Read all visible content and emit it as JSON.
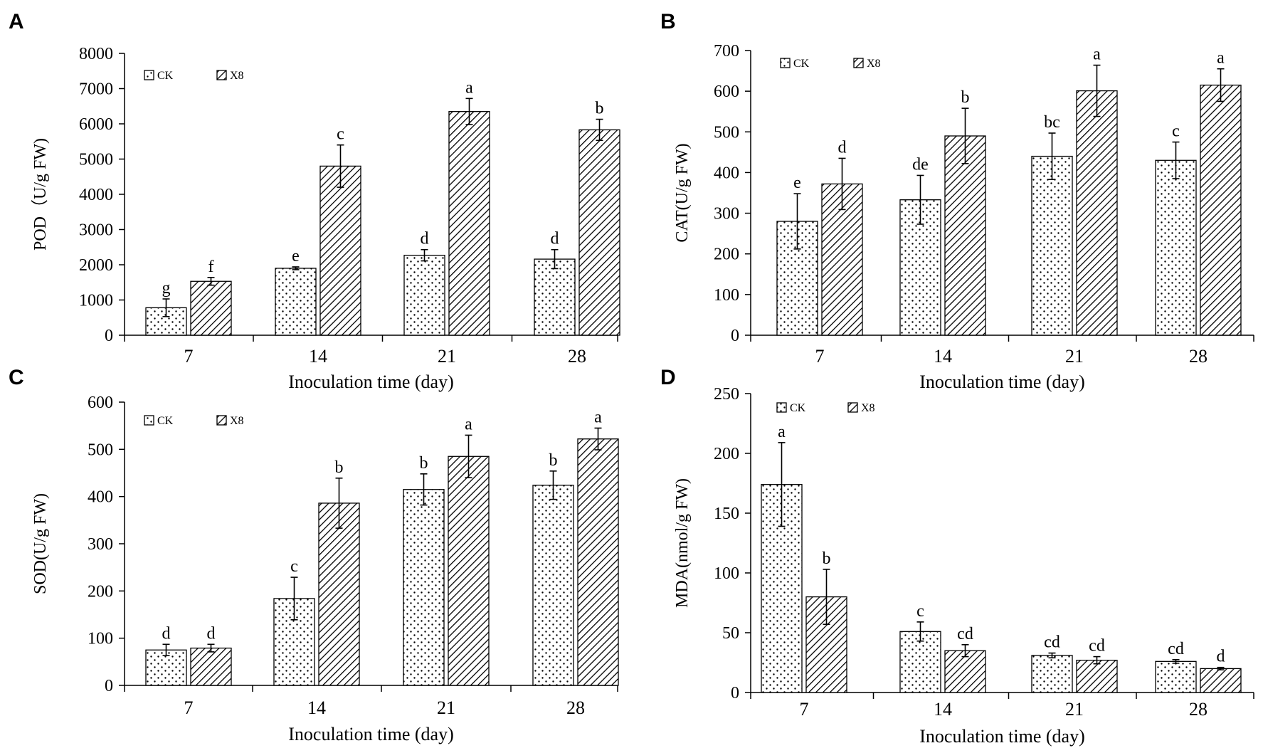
{
  "chart_data": [
    {
      "panel": "A",
      "type": "bar",
      "categories": [
        "7",
        "14",
        "21",
        "28"
      ],
      "series": [
        {
          "name": "CK",
          "values": [
            780,
            1900,
            2270,
            2160
          ],
          "errors": [
            250,
            40,
            160,
            270
          ],
          "labels": [
            "g",
            "e",
            "d",
            "d"
          ]
        },
        {
          "name": "X8",
          "values": [
            1530,
            4800,
            6350,
            5830
          ],
          "errors": [
            110,
            600,
            370,
            300
          ],
          "labels": [
            "f",
            "c",
            "a",
            "b"
          ]
        }
      ],
      "xlabel": "Inoculation time (day)",
      "ylabel": "POD（U/g FW)",
      "ylim": [
        0,
        8000
      ],
      "yticks": [
        0,
        1000,
        2000,
        3000,
        4000,
        5000,
        6000,
        7000,
        8000
      ],
      "legend": "top-left"
    },
    {
      "panel": "B",
      "type": "bar",
      "categories": [
        "7",
        "14",
        "21",
        "28"
      ],
      "series": [
        {
          "name": "CK",
          "values": [
            280,
            333,
            440,
            430
          ],
          "errors": [
            68,
            60,
            57,
            45
          ],
          "labels": [
            "e",
            "de",
            "bc",
            "c"
          ]
        },
        {
          "name": "X8",
          "values": [
            372,
            490,
            601,
            615
          ],
          "errors": [
            63,
            68,
            63,
            40
          ],
          "labels": [
            "d",
            "b",
            "a",
            "a"
          ]
        }
      ],
      "xlabel": "Inoculation time (day)",
      "ylabel": "CAT(U/g FW)",
      "ylim": [
        0,
        700
      ],
      "yticks": [
        0,
        100,
        200,
        300,
        400,
        500,
        600,
        700
      ],
      "legend": "top-left"
    },
    {
      "panel": "C",
      "type": "bar",
      "categories": [
        "7",
        "14",
        "21",
        "28"
      ],
      "series": [
        {
          "name": "CK",
          "values": [
            75,
            184,
            415,
            424
          ],
          "errors": [
            12,
            45,
            33,
            30
          ],
          "labels": [
            "d",
            "c",
            "b",
            "b"
          ]
        },
        {
          "name": "X8",
          "values": [
            79,
            386,
            485,
            522
          ],
          "errors": [
            8,
            53,
            45,
            23
          ],
          "labels": [
            "d",
            "b",
            "a",
            "a"
          ]
        }
      ],
      "xlabel": "Inoculation time (day)",
      "ylabel": "SOD(U/g FW)",
      "ylim": [
        0,
        600
      ],
      "yticks": [
        0,
        100,
        200,
        300,
        400,
        500,
        600
      ],
      "legend": "top-left"
    },
    {
      "panel": "D",
      "type": "bar",
      "categories": [
        "7",
        "14",
        "21",
        "28"
      ],
      "series": [
        {
          "name": "CK",
          "values": [
            174,
            51,
            31,
            26
          ],
          "errors": [
            35,
            8,
            2,
            1.5
          ],
          "labels": [
            "a",
            "c",
            "cd",
            "cd"
          ]
        },
        {
          "name": "X8",
          "values": [
            80,
            35,
            27,
            20
          ],
          "errors": [
            23,
            5,
            3,
            1
          ],
          "labels": [
            "b",
            "cd",
            "cd",
            "d"
          ]
        }
      ],
      "xlabel": "Inoculation time (day)",
      "ylabel": "MDA(nmol/g FW)",
      "ylim": [
        0,
        250
      ],
      "yticks": [
        0,
        50,
        100,
        150,
        200,
        250
      ],
      "legend": "top-left"
    }
  ]
}
